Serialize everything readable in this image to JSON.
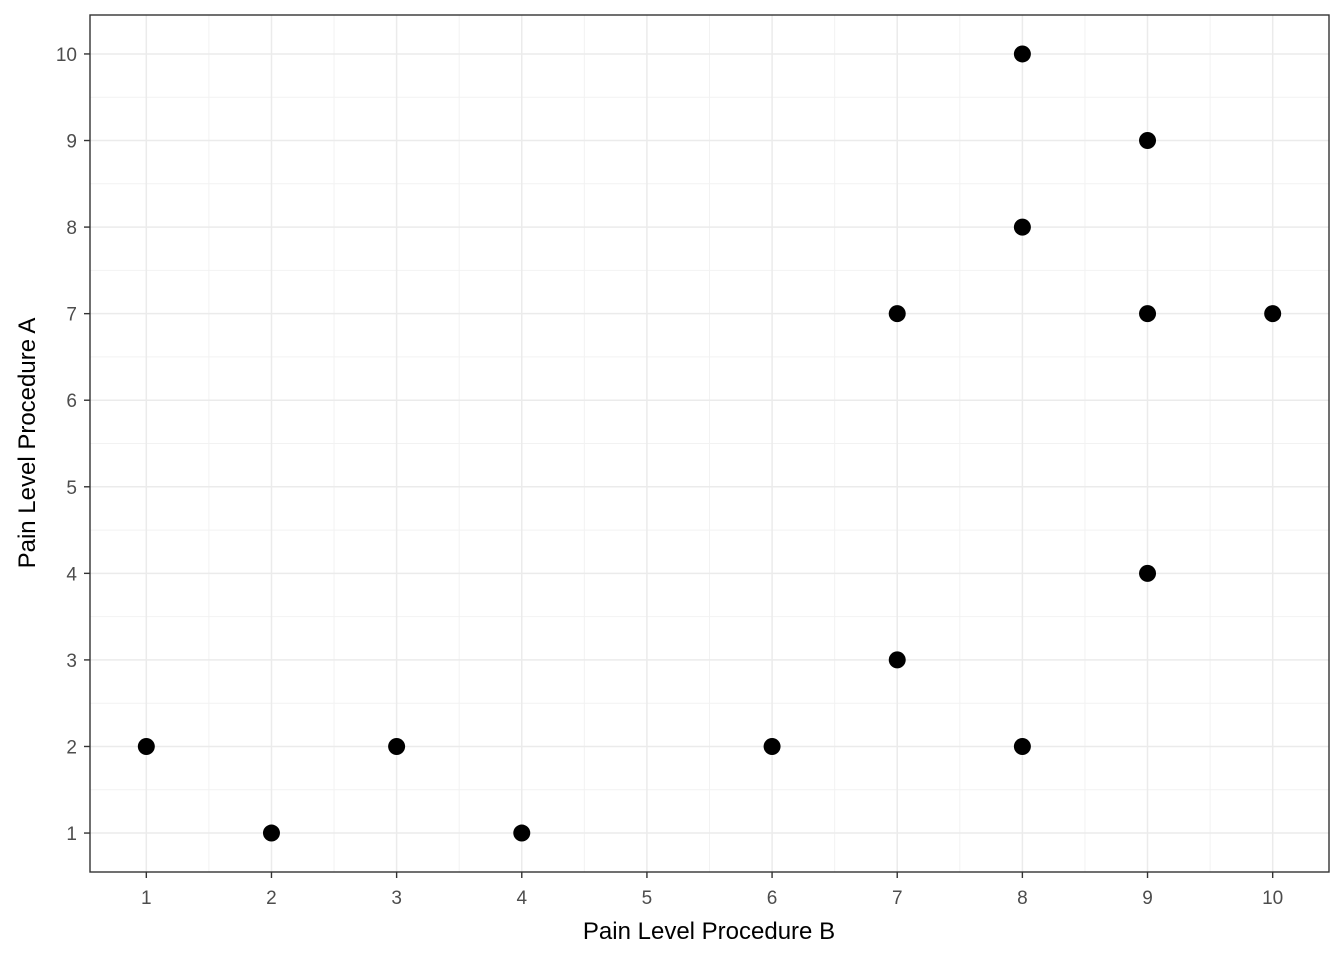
{
  "chart_data": {
    "type": "scatter",
    "title": "",
    "xlabel": "Pain Level Procedure B",
    "ylabel": "Pain Level Procedure A",
    "xlim": [
      0.55,
      10.45
    ],
    "ylim": [
      0.55,
      10.45
    ],
    "x_ticks": [
      1,
      2,
      3,
      4,
      5,
      6,
      7,
      8,
      9,
      10
    ],
    "y_ticks": [
      1,
      2,
      3,
      4,
      5,
      6,
      7,
      8,
      9,
      10
    ],
    "x_tick_labels": [
      "1",
      "2",
      "3",
      "4",
      "5",
      "6",
      "7",
      "8",
      "9",
      "10"
    ],
    "y_tick_labels": [
      "1",
      "2",
      "3",
      "4",
      "5",
      "6",
      "7",
      "8",
      "9",
      "10"
    ],
    "grid": true,
    "point_color": "#000000",
    "points": [
      {
        "x": 1,
        "y": 2
      },
      {
        "x": 2,
        "y": 1
      },
      {
        "x": 3,
        "y": 2
      },
      {
        "x": 4,
        "y": 1
      },
      {
        "x": 6,
        "y": 2
      },
      {
        "x": 7,
        "y": 3
      },
      {
        "x": 7,
        "y": 7
      },
      {
        "x": 8,
        "y": 2
      },
      {
        "x": 8,
        "y": 8
      },
      {
        "x": 8,
        "y": 10
      },
      {
        "x": 9,
        "y": 4
      },
      {
        "x": 9,
        "y": 7
      },
      {
        "x": 9,
        "y": 9
      },
      {
        "x": 10,
        "y": 7
      }
    ]
  }
}
